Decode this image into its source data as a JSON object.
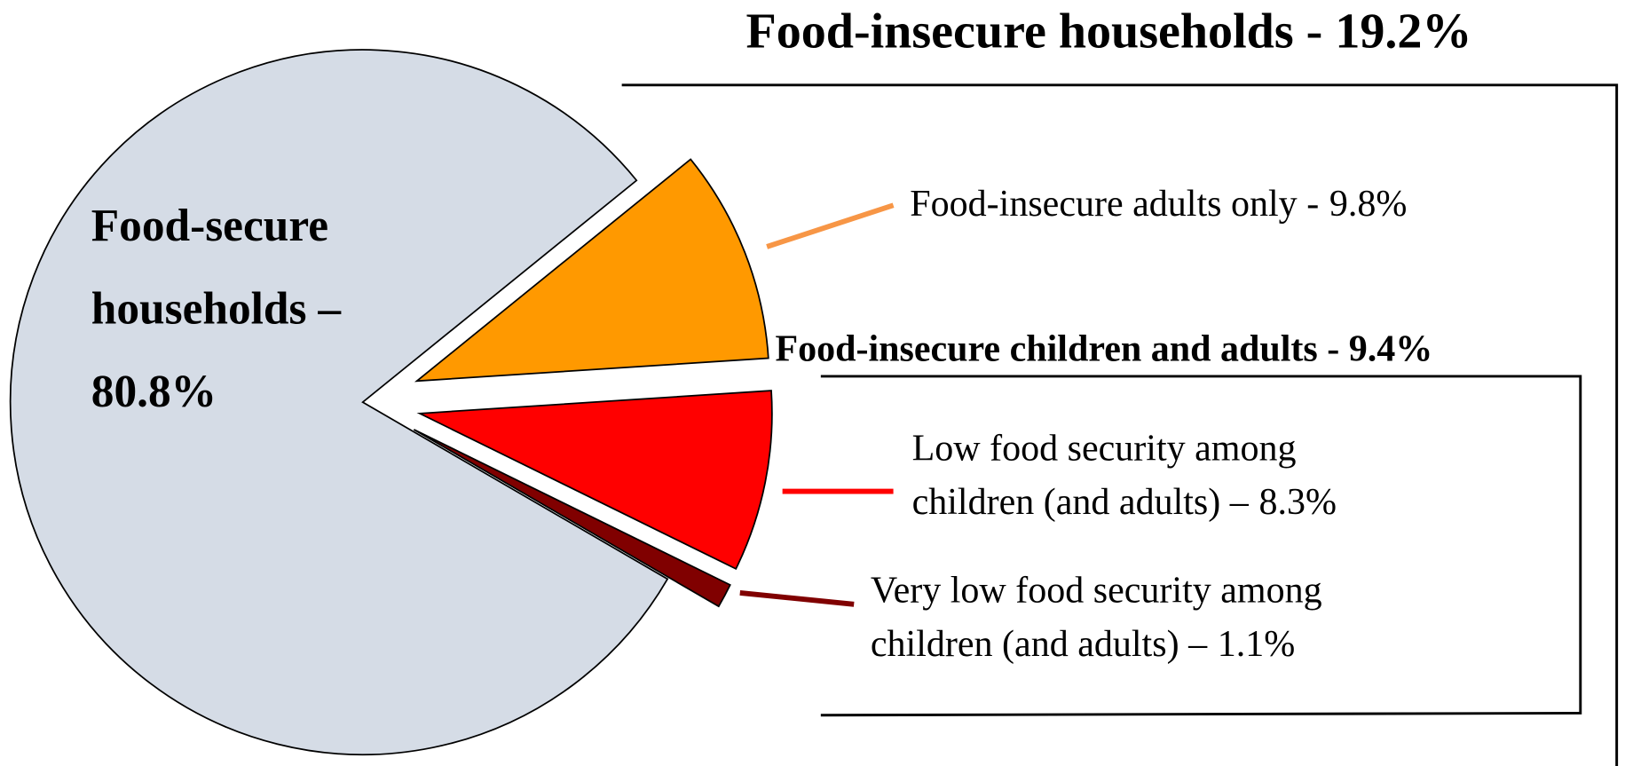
{
  "chart_data": {
    "type": "pie",
    "title": "Food-insecure households - 19.2%",
    "subtitle": "Food-insecure children and adults - 9.4%",
    "categories": [
      [
        "Food-secure",
        "households –"
      ],
      [
        "Food-insecure adults only -"
      ],
      [
        "Low food security among",
        "children (and adults) –"
      ],
      [
        "Very low food security among",
        "children (and adults) –"
      ]
    ],
    "values": [
      80.8,
      9.8,
      8.3,
      1.1
    ],
    "value_labels": [
      "80.8%",
      "9.8%",
      "8.3%",
      "1.1%"
    ],
    "colors": [
      "#d5dce6",
      "#ff9900",
      "#ff0000",
      "#800000"
    ],
    "leader_colors": [
      null,
      "#f79646",
      "#ff0000",
      "#800000"
    ]
  }
}
